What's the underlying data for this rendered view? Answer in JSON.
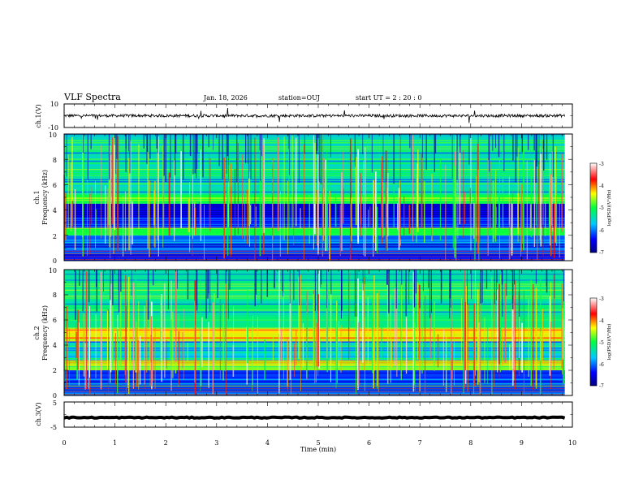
{
  "header": {
    "title": "VLF Spectra",
    "date": "Jan. 18, 2026",
    "station": "station=OUJ",
    "start": "start UT =  2 : 20 : 0"
  },
  "chart_data": [
    {
      "type": "line",
      "panel": "ch1-waveform",
      "ylabel": "ch.1(V)",
      "ylim": [
        -10,
        10
      ],
      "yticks": [
        "10",
        "-10"
      ],
      "xlim": [
        0,
        10
      ],
      "baseline": 0,
      "noise_amplitude": 1.2
    },
    {
      "type": "heatmap",
      "panel": "ch1-spectrogram",
      "ylabel_lines": [
        "ch.1",
        "Frequency (kHz)"
      ],
      "ylim": [
        0,
        10
      ],
      "yticks": [
        "0",
        "2",
        "4",
        "6",
        "8",
        "10"
      ],
      "xlim": [
        0,
        9.85
      ],
      "colorbar": {
        "label": "log(PSD)(V²/Hz)",
        "range": [
          -7,
          -3
        ],
        "ticks": [
          "-3",
          "-4",
          "-5",
          "-6",
          "-7"
        ]
      },
      "bands": [
        {
          "f_min": 0.0,
          "f_max": 0.8,
          "level": -6.3
        },
        {
          "f_min": 0.8,
          "f_max": 2.0,
          "level": -6.1
        },
        {
          "f_min": 2.0,
          "f_max": 2.6,
          "level": -5.0
        },
        {
          "f_min": 2.6,
          "f_max": 4.0,
          "level": -6.4
        },
        {
          "f_min": 4.0,
          "f_max": 4.5,
          "level": -6.6
        },
        {
          "f_min": 4.5,
          "f_max": 5.3,
          "level": -5.0
        },
        {
          "f_min": 5.3,
          "f_max": 10.0,
          "level": -5.4
        }
      ]
    },
    {
      "type": "heatmap",
      "panel": "ch2-spectrogram",
      "ylabel_lines": [
        "ch.2",
        "Frequency (kHz)"
      ],
      "ylim": [
        0,
        10
      ],
      "yticks": [
        "0",
        "2",
        "4",
        "6",
        "8",
        "10"
      ],
      "xlim": [
        0,
        9.85
      ],
      "colorbar": {
        "label": "log(PSD)(V²/Hz)",
        "range": [
          -7,
          -3
        ],
        "ticks": [
          "-3",
          "-4",
          "-5",
          "-6",
          "-7"
        ]
      },
      "bands": [
        {
          "f_min": 0.0,
          "f_max": 0.8,
          "level": -6.0
        },
        {
          "f_min": 0.8,
          "f_max": 2.0,
          "level": -6.2
        },
        {
          "f_min": 2.0,
          "f_max": 2.8,
          "level": -4.6
        },
        {
          "f_min": 2.8,
          "f_max": 4.3,
          "level": -5.6
        },
        {
          "f_min": 4.3,
          "f_max": 5.4,
          "level": -4.3
        },
        {
          "f_min": 5.4,
          "f_max": 10.0,
          "level": -5.3
        }
      ]
    },
    {
      "type": "line",
      "panel": "ch3-waveform",
      "ylabel": "ch.3(V)",
      "ylim": [
        -5,
        5
      ],
      "yticks": [
        "5",
        "0",
        "-5"
      ],
      "xlim": [
        0,
        10
      ],
      "baseline": -1.2,
      "noise_amplitude": 0.2
    }
  ],
  "xaxis": {
    "label": "Time (min)",
    "range": [
      0,
      10
    ],
    "ticks": [
      "0",
      "1",
      "2",
      "3",
      "4",
      "5",
      "6",
      "7",
      "8",
      "9",
      "10"
    ]
  }
}
